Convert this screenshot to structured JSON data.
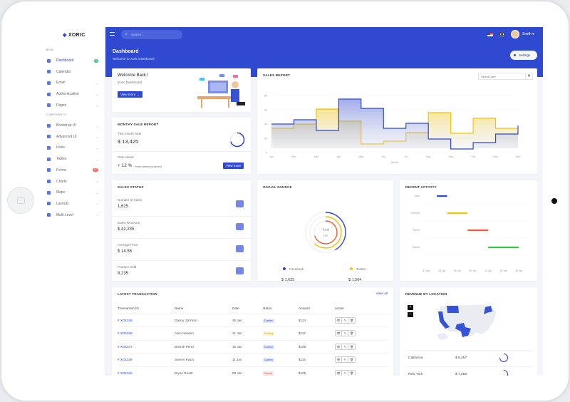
{
  "brand": {
    "name": "XORIC",
    "accent": "#2f49d1"
  },
  "sidebar": {
    "menu_label": "MENU",
    "components_label": "COMPONENTS",
    "items": [
      {
        "label": "Dashboard",
        "icon": "monitor-icon",
        "badge": "9",
        "badge_color": "#34c38f",
        "active": true
      },
      {
        "label": "Calendar",
        "icon": "calendar-icon"
      },
      {
        "label": "Email",
        "icon": "email-icon",
        "chevron": true
      },
      {
        "label": "Authentication",
        "icon": "lock-icon",
        "chevron": true
      },
      {
        "label": "Pages",
        "icon": "pages-icon",
        "chevron": true
      }
    ],
    "components": [
      {
        "label": "Bootstrap UI",
        "icon": "bootstrap-icon",
        "chevron": true
      },
      {
        "label": "Advanced UI",
        "icon": "advanced-icon",
        "chevron": true
      },
      {
        "label": "Icons",
        "icon": "icons-icon",
        "chevron": true
      },
      {
        "label": "Tables",
        "icon": "table-icon",
        "chevron": true
      },
      {
        "label": "Forms",
        "icon": "form-icon",
        "badge": "07",
        "badge_color": "#f46a6a"
      },
      {
        "label": "Charts",
        "icon": "chart-icon",
        "chevron": true
      },
      {
        "label": "Maps",
        "icon": "map-icon",
        "chevron": true
      },
      {
        "label": "Layouts",
        "icon": "layout-icon",
        "chevron": true
      },
      {
        "label": "Multi Level",
        "icon": "multilevel-icon",
        "chevron": true
      }
    ]
  },
  "header": {
    "search_placeholder": "Search...",
    "user": "Smith",
    "page_title": "Dashboard",
    "page_subtitle": "Welcome to Xoric Dashboard",
    "settings": "Settings"
  },
  "welcome": {
    "title": "Welcome Back !",
    "subtitle": "Xoric Dashboard",
    "button": "View more →"
  },
  "monthly": {
    "title": "MONTHY SALE REPORT",
    "month_label": "This month Sale",
    "month_value": "$ 13,425",
    "status_label": "Sale status",
    "status_value": "+ 12 %",
    "status_note": "From previous period",
    "button": "View more",
    "progress": 0.7
  },
  "sales_report": {
    "title": "SALES REPORT",
    "date_placeholder": "Select Date"
  },
  "chart_data": [
    {
      "type": "line",
      "step": true,
      "title": "",
      "xlabel": "Month",
      "ylabel": "",
      "categories": [
        "Jan",
        "Feb",
        "Mar",
        "Apr",
        "May",
        "Jun",
        "Jul",
        "Aug",
        "Sep",
        "Oct",
        "Nov",
        "Dec"
      ],
      "ylim": [
        0,
        80
      ],
      "yticks": [
        0,
        20,
        40,
        60,
        80
      ],
      "series": [
        {
          "color": "#2f49d1",
          "values": [
            40,
            46,
            31,
            75,
            62,
            34,
            41,
            19,
            5,
            14,
            26,
            38
          ]
        },
        {
          "color": "#f1c40f",
          "values": [
            34,
            40,
            61,
            44,
            12,
            16,
            28,
            56,
            27,
            48,
            34,
            34
          ]
        }
      ]
    },
    {
      "type": "gantt",
      "title": "RECENT ACTIVITY",
      "xticks": [
        "31 Dec",
        "03 Jan",
        "06 Jan",
        "09 Jan",
        "12 Jan",
        "15 Jan",
        "18 Jan"
      ],
      "tasks": [
        {
          "name": "Jack",
          "start": "02 Jan",
          "end": "04 Jan",
          "color": "#2f49d1"
        },
        {
          "name": "Thomas",
          "start": "04 Jan",
          "end": "08 Jan",
          "color": "#f1c40f"
        },
        {
          "name": "David",
          "start": "08 Jan",
          "end": "12 Jan",
          "color": "#f05a3a"
        },
        {
          "name": "James",
          "start": "12 Jan",
          "end": "18 Jan",
          "color": "#3fbf4a"
        }
      ]
    }
  ],
  "sales_status": {
    "title": "SALES STATUS",
    "items": [
      {
        "label": "Number of Sales",
        "value": "1,625",
        "icon": "layers-icon"
      },
      {
        "label": "Sales Revenue",
        "value": "$ 42,235",
        "icon": "bar-chart-icon"
      },
      {
        "label": "Average Price",
        "value": "$ 14.56",
        "icon": "ticket-icon"
      },
      {
        "label": "Product Sold",
        "value": "8,235",
        "icon": "box-icon"
      }
    ]
  },
  "social": {
    "title": "SOCIAL SOURCE",
    "total_label": "Total",
    "total": "166",
    "rings": [
      {
        "color": "#2f49d1",
        "fraction": 0.42
      },
      {
        "color": "#f1c40f",
        "fraction": 0.62
      },
      {
        "color": "#f05a3a",
        "fraction": 0.7
      }
    ],
    "legend": [
      {
        "name": "Facebook",
        "value": "$ 1,625",
        "color": "#2f49d1"
      },
      {
        "name": "Twitter",
        "value": "$ 1,504",
        "color": "#f1c40f"
      }
    ]
  },
  "transactions": {
    "title": "LATEST TRANSACTION",
    "view_all": "View all",
    "columns": [
      "Transaction ID",
      "Name",
      "Date",
      "status",
      "Amount",
      "Action"
    ],
    "rows": [
      {
        "id": "# XO1345",
        "name": "Danny Johnson",
        "date": "26 Jan",
        "status": "Confirm",
        "amount": "$124"
      },
      {
        "id": "# XO1346",
        "name": "Alvin Newton",
        "date": "21 Jan",
        "status": "Pending",
        "amount": "$112"
      },
      {
        "id": "# XO1347",
        "name": "Bennie Perez",
        "date": "15 Jan",
        "status": "Confirm",
        "amount": "$106"
      },
      {
        "id": "# XO1348",
        "name": "Steven Kwon",
        "date": "11 Jan",
        "status": "Confirm",
        "amount": "$115"
      },
      {
        "id": "# XO1349",
        "name": "Bryan Roark",
        "date": "08 Jan",
        "status": "Cancel",
        "amount": "$105"
      }
    ]
  },
  "revenue": {
    "title": "REVENUE BY LOCATION",
    "zoom_in": "+",
    "zoom_out": "−",
    "locations": [
      {
        "name": "California",
        "value": "$ 8,257",
        "progress": 0.75
      },
      {
        "name": "New York",
        "value": "$ 7,253",
        "progress": 0.6
      }
    ]
  }
}
